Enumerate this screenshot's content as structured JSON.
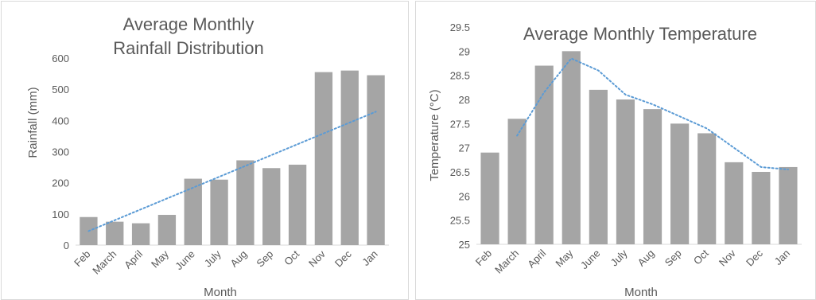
{
  "chart_data": [
    {
      "type": "bar",
      "title_lines": [
        "Average Monthly",
        "Rainfall Distribution"
      ],
      "xlabel": "Month",
      "ylabel": "Rainfall (mm)",
      "ylim": [
        0,
        600
      ],
      "yticks": [
        "0",
        "100",
        "200",
        "300",
        "400",
        "500",
        "600"
      ],
      "categories": [
        "Feb",
        "March",
        "April",
        "May",
        "June",
        "July",
        "Aug",
        "Sep",
        "Oct",
        "Nov",
        "Dec",
        "Jan"
      ],
      "values": [
        90,
        75,
        70,
        97,
        213,
        210,
        272,
        247,
        258,
        555,
        560,
        545
      ],
      "trendline": {
        "kind": "linear",
        "from": 45,
        "to": 428
      },
      "grid": false,
      "colors": {
        "bar": "#a5a5a5",
        "trend": "#5b9bd5"
      }
    },
    {
      "type": "bar",
      "title_lines": [
        "Average Monthly Temperature"
      ],
      "xlabel": "Month",
      "ylabel": "Temperature (°C)",
      "ylim": [
        25,
        29.5
      ],
      "yticks": [
        "25",
        "25.5",
        "26",
        "26.5",
        "27",
        "27.5",
        "28",
        "28.5",
        "29",
        "29.5"
      ],
      "categories": [
        "Feb",
        "March",
        "April",
        "May",
        "June",
        "July",
        "Aug",
        "Sep",
        "Oct",
        "Nov",
        "Dec",
        "Jan"
      ],
      "values": [
        26.9,
        27.6,
        28.7,
        29.0,
        28.2,
        28.0,
        27.8,
        27.5,
        27.3,
        26.7,
        26.5,
        26.6
      ],
      "trendline": {
        "kind": "moving-average",
        "period": 2
      },
      "grid": false,
      "colors": {
        "bar": "#a5a5a5",
        "trend": "#5b9bd5"
      }
    }
  ]
}
